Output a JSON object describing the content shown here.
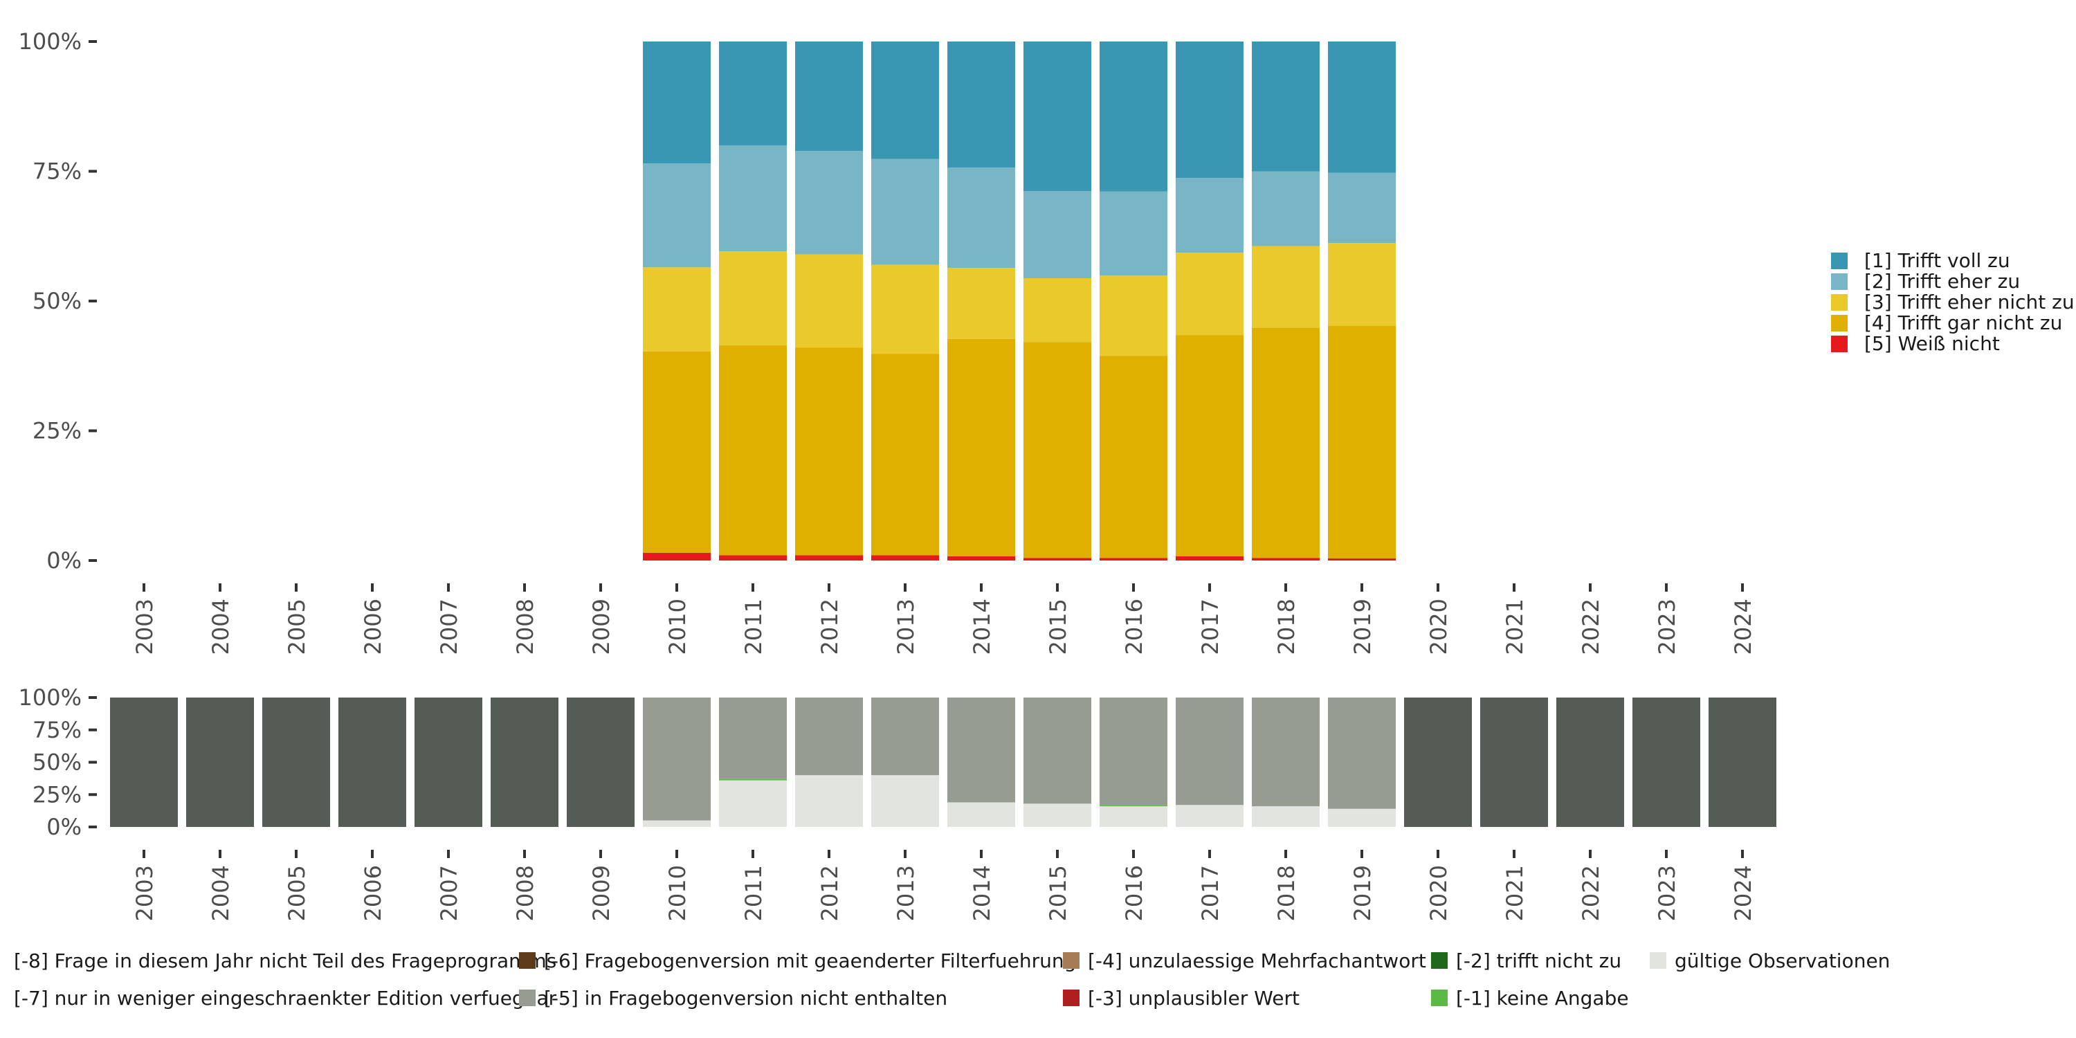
{
  "chart_data": [
    {
      "type": "stacked-bar",
      "categories": [
        "2003",
        "2004",
        "2005",
        "2006",
        "2007",
        "2008",
        "2009",
        "2010",
        "2011",
        "2012",
        "2013",
        "2014",
        "2015",
        "2016",
        "2017",
        "2018",
        "2019",
        "2020",
        "2021",
        "2022",
        "2023",
        "2024"
      ],
      "y_ticks": [
        "0%",
        "25%",
        "50%",
        "75%",
        "100%"
      ],
      "ylim": [
        0,
        100
      ],
      "series": [
        {
          "name": "[5] Weiß nicht",
          "color": "#e41a1c",
          "values": [
            null,
            null,
            null,
            null,
            null,
            null,
            null,
            1.5,
            1.0,
            1.0,
            1.0,
            0.8,
            0.5,
            0.5,
            0.8,
            0.5,
            0.4,
            null,
            null,
            null,
            null,
            null
          ]
        },
        {
          "name": "[4] Trifft gar nicht zu",
          "color": "#e0b000",
          "values": [
            null,
            null,
            null,
            null,
            null,
            null,
            null,
            38.8,
            40.5,
            40.0,
            38.8,
            41.9,
            41.6,
            38.9,
            42.6,
            44.3,
            44.8,
            null,
            null,
            null,
            null,
            null
          ]
        },
        {
          "name": "[3] Trifft eher nicht zu",
          "color": "#eac92c",
          "values": [
            null,
            null,
            null,
            null,
            null,
            null,
            null,
            16.2,
            18.1,
            18.0,
            17.2,
            13.7,
            12.3,
            15.5,
            15.9,
            15.8,
            16.0,
            null,
            null,
            null,
            null,
            null
          ]
        },
        {
          "name": "[2] Trifft eher zu",
          "color": "#78b6c7",
          "values": [
            null,
            null,
            null,
            null,
            null,
            null,
            null,
            20.0,
            20.4,
            19.9,
            20.4,
            19.3,
            16.8,
            16.2,
            14.4,
            14.4,
            13.5,
            null,
            null,
            null,
            null,
            null
          ]
        },
        {
          "name": "[1] Trifft voll zu",
          "color": "#3a97b3",
          "values": [
            null,
            null,
            null,
            null,
            null,
            null,
            null,
            23.5,
            20.0,
            21.1,
            22.6,
            24.3,
            28.8,
            28.9,
            26.3,
            25.0,
            25.3,
            null,
            null,
            null,
            null,
            null
          ]
        }
      ],
      "legend": [
        {
          "label": "[1] Trifft voll zu",
          "color": "#3a97b3"
        },
        {
          "label": "[2] Trifft eher zu",
          "color": "#78b6c7"
        },
        {
          "label": "[3] Trifft eher nicht zu",
          "color": "#eac92c"
        },
        {
          "label": "[4] Trifft gar nicht zu",
          "color": "#e0b000"
        },
        {
          "label": "[5] Weiß nicht",
          "color": "#e41a1c"
        }
      ]
    },
    {
      "type": "stacked-bar",
      "categories": [
        "2003",
        "2004",
        "2005",
        "2006",
        "2007",
        "2008",
        "2009",
        "2010",
        "2011",
        "2012",
        "2013",
        "2014",
        "2015",
        "2016",
        "2017",
        "2018",
        "2019",
        "2020",
        "2021",
        "2022",
        "2023",
        "2024"
      ],
      "y_ticks": [
        "0%",
        "25%",
        "50%",
        "75%",
        "100%"
      ],
      "ylim": [
        0,
        100
      ],
      "series": [
        {
          "name": "gültige Observationen",
          "color": "#e1e4df",
          "values": [
            0,
            0,
            0,
            0,
            0,
            0,
            0,
            5,
            36,
            40,
            40,
            19,
            18,
            16,
            17,
            16,
            14,
            0,
            0,
            0,
            0,
            0
          ]
        },
        {
          "name": "[-1] keine Angabe",
          "color": "#5aba45",
          "values": [
            0,
            0,
            0,
            0,
            0,
            0,
            0,
            0,
            1,
            0,
            0,
            0,
            0,
            1,
            0,
            0,
            0,
            0,
            0,
            0,
            0,
            0
          ]
        },
        {
          "name": "[-5] in Fragebogenversion nicht enthalten",
          "color": "#979c93",
          "values": [
            0,
            0,
            0,
            0,
            0,
            0,
            0,
            95,
            63,
            60,
            60,
            81,
            82,
            83,
            83,
            84,
            86,
            0,
            0,
            0,
            0,
            0
          ]
        },
        {
          "name": "[-8] Frage in diesem Jahr nicht Teil des Frageprogramms",
          "color": "#555c55",
          "values": [
            100,
            100,
            100,
            100,
            100,
            100,
            100,
            0,
            0,
            0,
            0,
            0,
            0,
            0,
            0,
            0,
            0,
            100,
            100,
            100,
            100,
            100
          ]
        }
      ]
    }
  ],
  "bottom_legend": [
    {
      "label": "[-8] Frage in diesem Jahr nicht Teil des Frageprogramms",
      "color": "#555c55"
    },
    {
      "label": "[-7] nur in weniger eingeschraenkter Edition verfuegbar",
      "color": "#7a7f76"
    },
    {
      "label": "[-6] Fragebogenversion mit geaenderter Filterfuehrung",
      "color": "#5c3a1a"
    },
    {
      "label": "[-5] in Fragebogenversion nicht enthalten",
      "color": "#979c93"
    },
    {
      "label": "[-4] unzulaessige Mehrfachantwort",
      "color": "#a77c55"
    },
    {
      "label": "[-3] unplausibler Wert",
      "color": "#b01f1f"
    },
    {
      "label": "[-2] trifft nicht zu",
      "color": "#1f6a1a"
    },
    {
      "label": "[-1] keine Angabe",
      "color": "#5aba45"
    },
    {
      "label": "gültige Observationen",
      "color": "#e1e4df"
    }
  ]
}
